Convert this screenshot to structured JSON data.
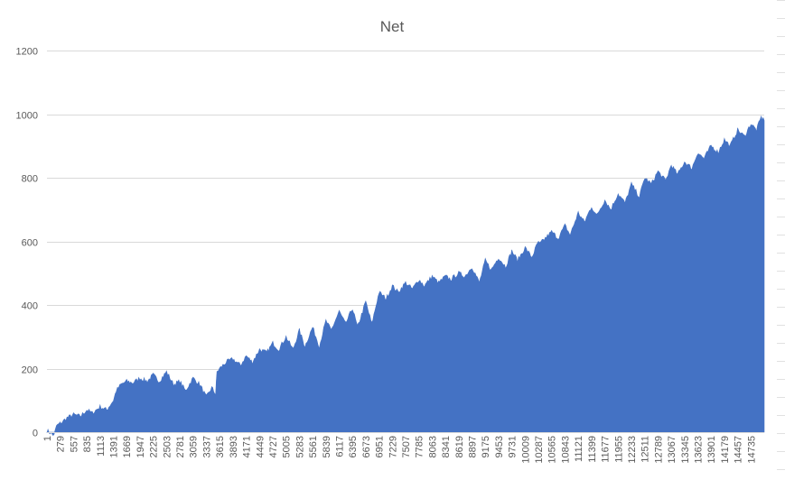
{
  "chart_data": {
    "type": "area",
    "title": "Net",
    "xlabel": "",
    "ylabel": "",
    "ylim": [
      0,
      1200
    ],
    "yticks": [
      0,
      200,
      400,
      600,
      800,
      1000,
      1200
    ],
    "grid": true,
    "legend": "none",
    "xticks": [
      "1",
      "279",
      "557",
      "835",
      "1113",
      "1391",
      "1669",
      "1947",
      "2225",
      "2503",
      "2781",
      "3059",
      "3337",
      "3615",
      "3893",
      "4171",
      "4449",
      "4727",
      "5005",
      "5283",
      "5561",
      "5839",
      "6117",
      "6395",
      "6673",
      "6951",
      "7229",
      "7507",
      "7785",
      "8063",
      "8341",
      "8619",
      "8897",
      "9175",
      "9453",
      "9731",
      "10009",
      "10287",
      "10565",
      "10843",
      "11121",
      "11399",
      "11677",
      "11955",
      "12233",
      "12511",
      "12789",
      "13067",
      "13345",
      "13623",
      "13901",
      "14179",
      "14457",
      "14735"
    ],
    "xlim": [
      1,
      15013
    ],
    "series": [
      {
        "color": "#4472c4",
        "x": [
          1,
          150,
          200,
          300,
          420,
          557,
          700,
          835,
          950,
          1113,
          1250,
          1391,
          1450,
          1550,
          1669,
          1800,
          1947,
          2100,
          2225,
          2350,
          2503,
          2650,
          2781,
          2900,
          3059,
          3200,
          3337,
          3450,
          3530,
          3560,
          3615,
          3750,
          3893,
          4050,
          4171,
          4300,
          4449,
          4600,
          4727,
          4850,
          5005,
          5150,
          5283,
          5400,
          5561,
          5700,
          5839,
          5950,
          6117,
          6250,
          6395,
          6500,
          6673,
          6800,
          6951,
          7100,
          7229,
          7350,
          7507,
          7650,
          7785,
          7900,
          8063,
          8200,
          8341,
          8450,
          8619,
          8750,
          8897,
          9050,
          9175,
          9300,
          9453,
          9600,
          9731,
          9850,
          10009,
          10150,
          10287,
          10300,
          10565,
          10700,
          10843,
          10950,
          11121,
          11250,
          11399,
          11500,
          11677,
          11800,
          11955,
          12100,
          12233,
          12400,
          12511,
          12650,
          12789,
          12950,
          13067,
          13200,
          13345,
          13500,
          13623,
          13750,
          13901,
          14050,
          14179,
          14300,
          14457,
          14600,
          14735,
          14850,
          14950,
          15013
        ],
        "y": [
          5,
          -10,
          20,
          30,
          45,
          55,
          50,
          70,
          60,
          80,
          70,
          100,
          130,
          150,
          160,
          155,
          170,
          160,
          180,
          160,
          190,
          150,
          160,
          130,
          170,
          150,
          110,
          140,
          120,
          190,
          200,
          220,
          230,
          210,
          240,
          220,
          260,
          250,
          280,
          260,
          300,
          260,
          320,
          270,
          330,
          270,
          350,
          320,
          380,
          340,
          390,
          330,
          410,
          340,
          440,
          420,
          460,
          440,
          470,
          450,
          480,
          460,
          490,
          470,
          490,
          480,
          500,
          490,
          520,
          470,
          540,
          510,
          550,
          520,
          570,
          540,
          580,
          550,
          600,
          590,
          630,
          610,
          650,
          620,
          690,
          660,
          710,
          680,
          730,
          700,
          750,
          720,
          780,
          740,
          800,
          780,
          820,
          790,
          840,
          810,
          850,
          830,
          880,
          860,
          900,
          880,
          920,
          900,
          950,
          930,
          970,
          950,
          990,
          980
        ]
      }
    ]
  }
}
